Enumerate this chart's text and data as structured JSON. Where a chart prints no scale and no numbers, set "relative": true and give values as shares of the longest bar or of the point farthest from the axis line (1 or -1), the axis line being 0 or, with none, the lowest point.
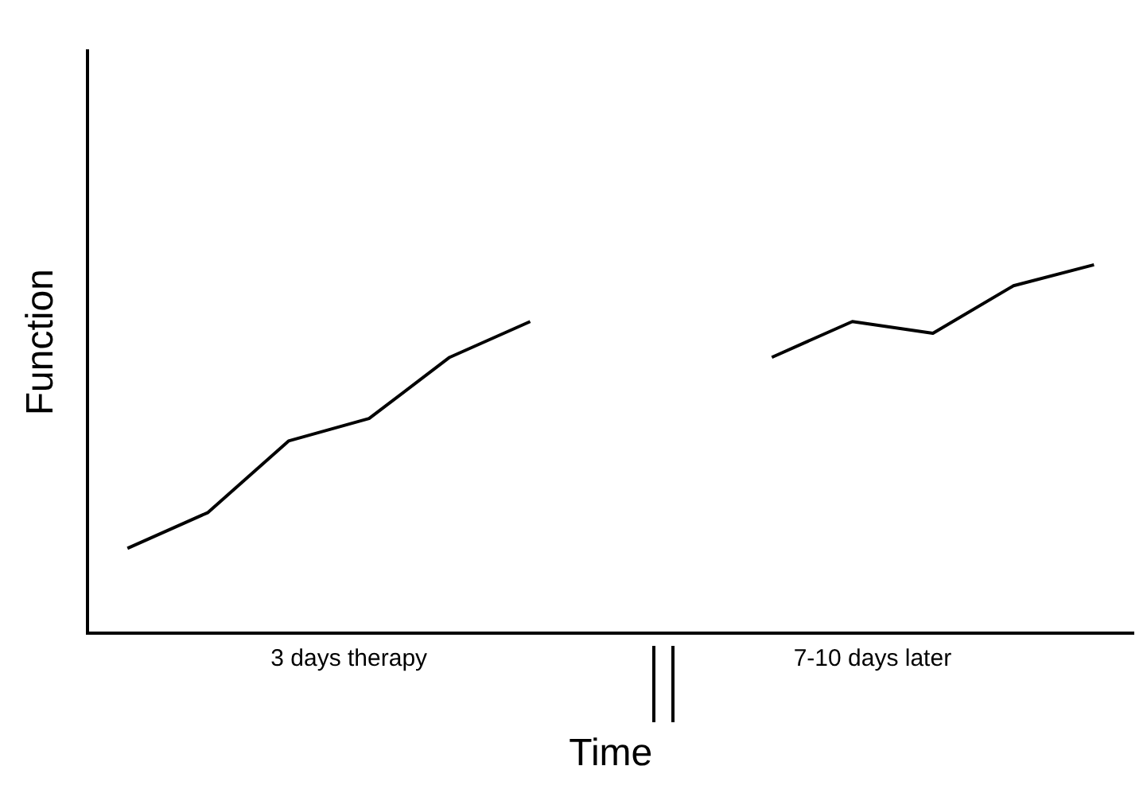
{
  "chart_data": {
    "type": "line",
    "relative": true,
    "xlabel": "Time",
    "ylabel": "Function",
    "categories": [
      null,
      null,
      null,
      null,
      null,
      null,
      null,
      null,
      null,
      null,
      null,
      null,
      null
    ],
    "series": [
      {
        "color": "#000000",
        "values": [
          0.231,
          0.328,
          0.522,
          0.583,
          0.749,
          0.846,
          null,
          null,
          null,
          null,
          null,
          null,
          null
        ]
      },
      {
        "color": "#000000",
        "values": [
          null,
          null,
          null,
          null,
          null,
          null,
          null,
          null,
          0.749,
          0.846,
          0.814,
          0.943,
          1
        ]
      }
    ],
    "annotations": [
      "3 days therapy",
      "7-10 days later"
    ],
    "grid": false,
    "legend": false,
    "marker": "none",
    "line_style": "solid"
  }
}
